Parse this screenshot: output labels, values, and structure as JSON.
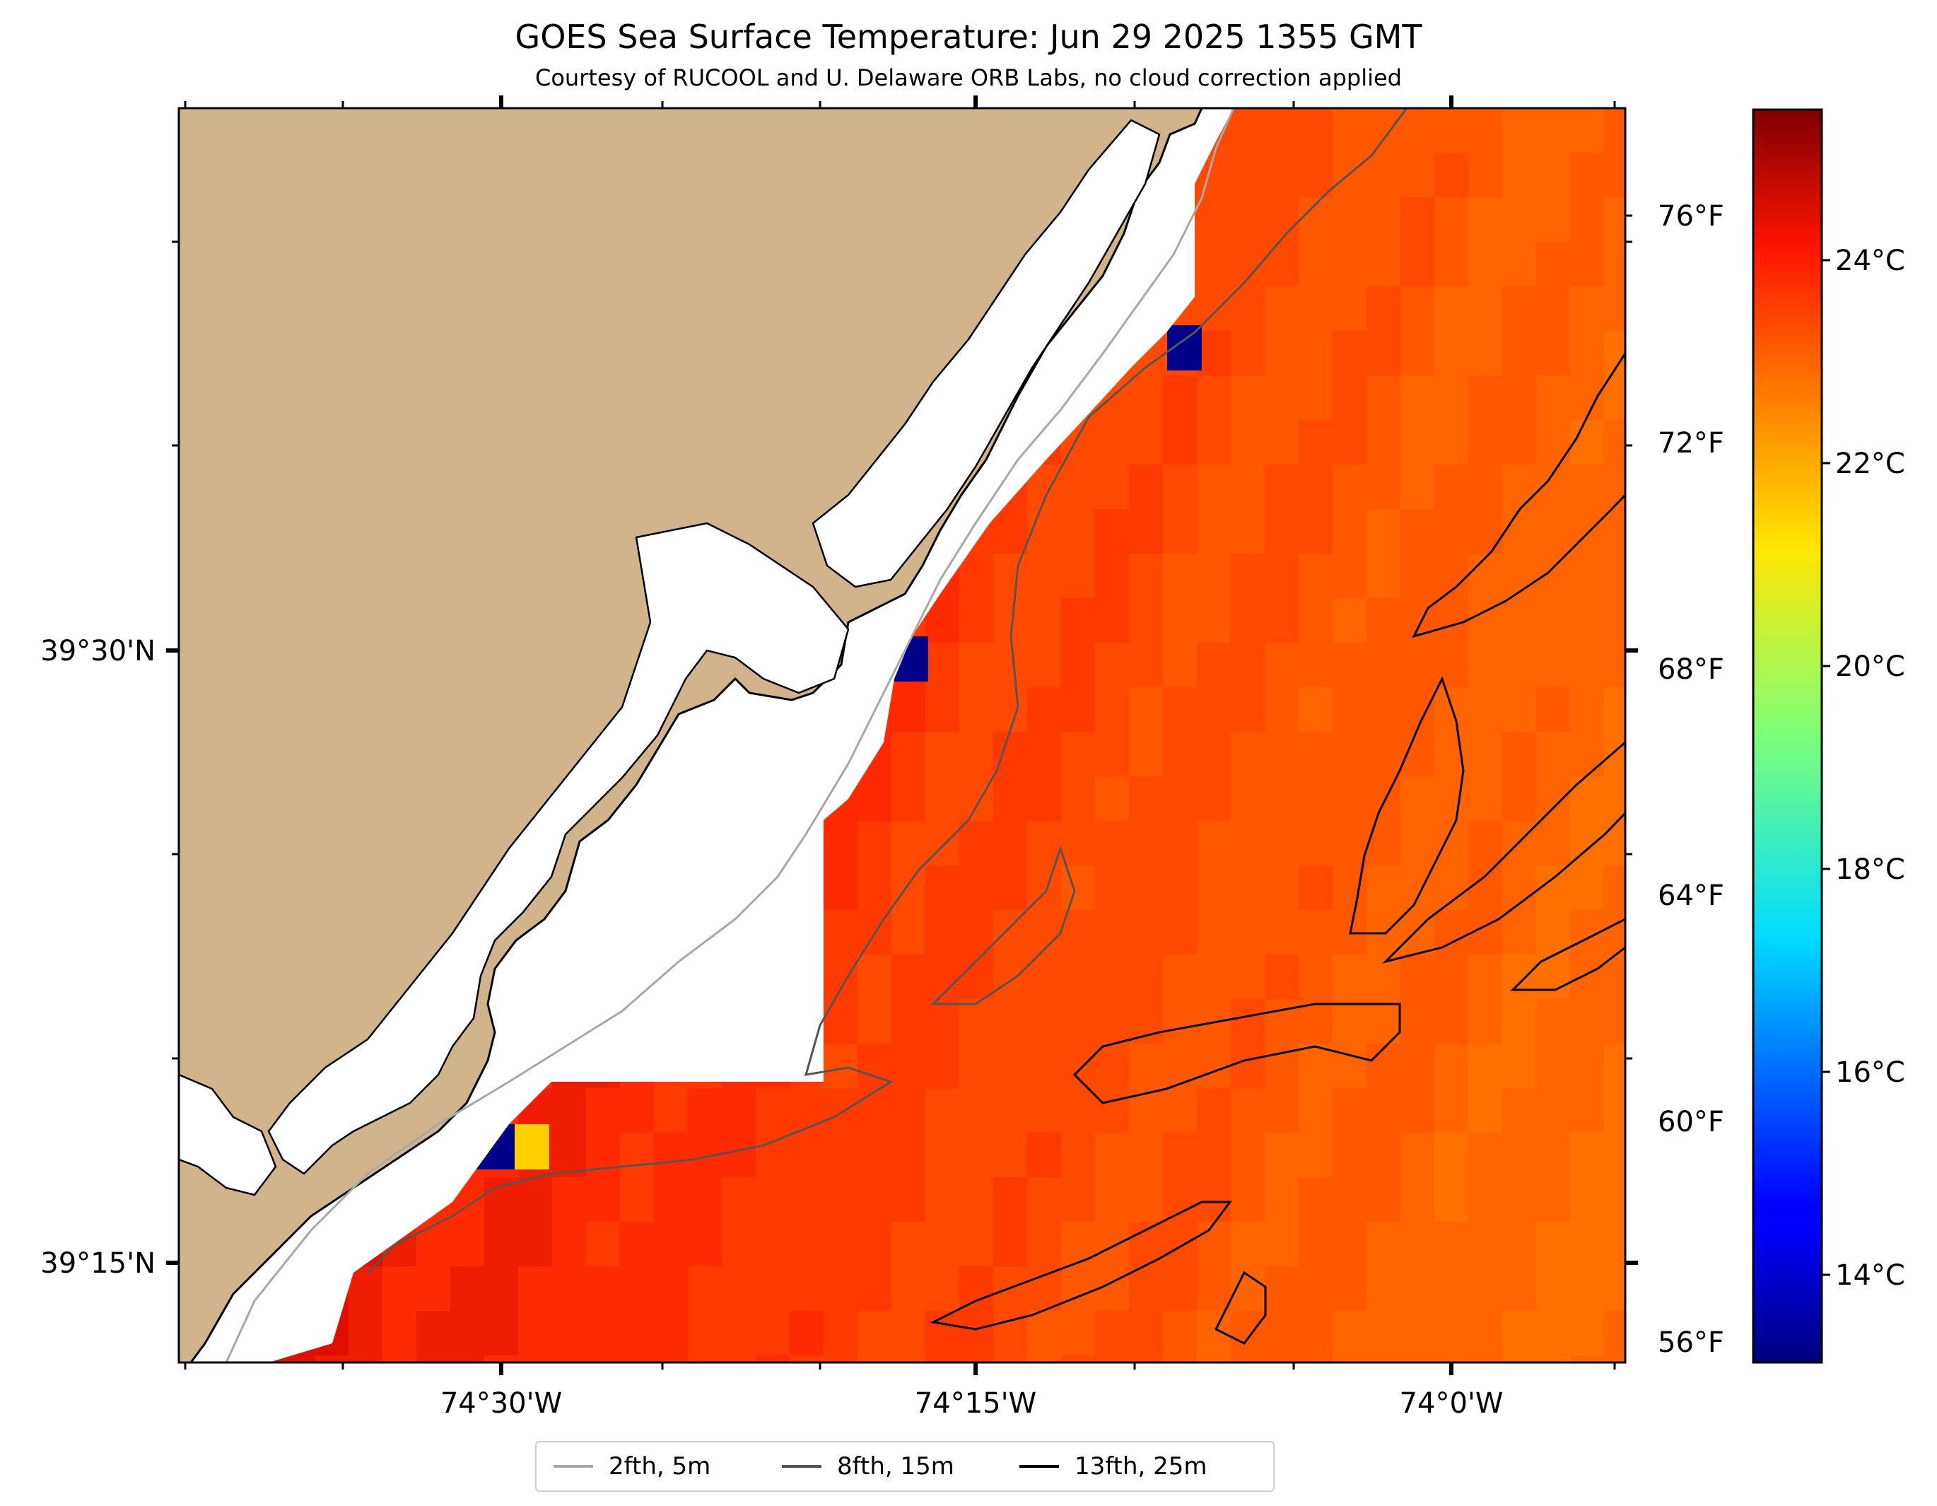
{
  "title": "GOES Sea Surface Temperature: Jun 29 2025 1355 GMT",
  "subtitle": "Courtesy of RUCOOL and U. Delaware ORB Labs, no cloud correction applied",
  "map": {
    "lon_ticks": [
      "74°30'W",
      "74°15'W",
      "74°0'W"
    ],
    "lat_ticks": [
      "39°30'N",
      "39°15'N"
    ],
    "land_color": "#d2b48c",
    "coast_color": "#000000"
  },
  "colorbar": {
    "colormap": "jet",
    "celsius_ticks": [
      "24°C",
      "22°C",
      "20°C",
      "18°C",
      "16°C",
      "14°C"
    ],
    "fahrenheit_ticks": [
      "76°F",
      "72°F",
      "68°F",
      "64°F",
      "60°F",
      "56°F"
    ]
  },
  "legend": {
    "items": [
      {
        "label": "2fth, 5m",
        "color": "#a8a8a8"
      },
      {
        "label": "8fth, 15m",
        "color": "#555555"
      },
      {
        "label": "13fth, 25m",
        "color": "#000000"
      }
    ]
  }
}
